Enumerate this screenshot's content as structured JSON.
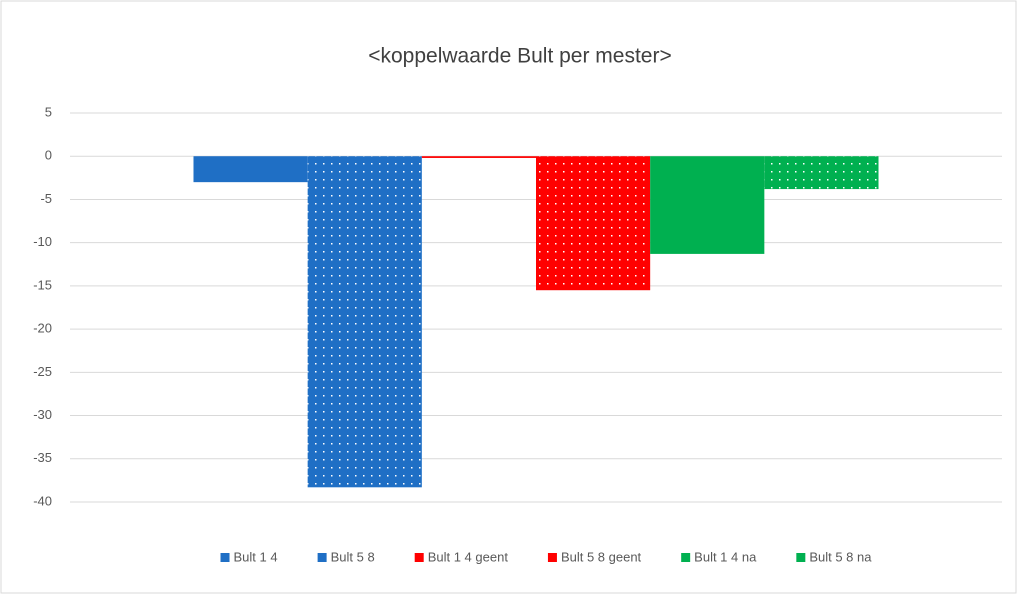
{
  "chart_data": {
    "type": "bar",
    "title": "<koppelwaarde Bult per mester>",
    "categories": [
      null
    ],
    "series": [
      {
        "name": "Bult 1 4",
        "color": "#1f6fc5",
        "pattern": "solid",
        "values": [
          -3
        ]
      },
      {
        "name": "Bult 5 8",
        "color": "#1f6fc5",
        "pattern": "dotted",
        "values": [
          -38.3
        ]
      },
      {
        "name": "Bult 1 4 geent",
        "color": "#ff0000",
        "pattern": "solid",
        "values": [
          -0.2
        ]
      },
      {
        "name": "Bult 5 8 geent",
        "color": "#ff0000",
        "pattern": "dotted",
        "values": [
          -15.5
        ]
      },
      {
        "name": "Bult 1 4 na",
        "color": "#00b050",
        "pattern": "solid",
        "values": [
          -11.3
        ]
      },
      {
        "name": "Bult 5 8 na",
        "color": "#00b050",
        "pattern": "dotted",
        "values": [
          -3.8
        ]
      }
    ],
    "ylim": [
      -40,
      5
    ],
    "yticks": [
      5,
      0,
      -5,
      -10,
      -15,
      -20,
      -25,
      -30,
      -35,
      -40
    ],
    "grid": true
  }
}
